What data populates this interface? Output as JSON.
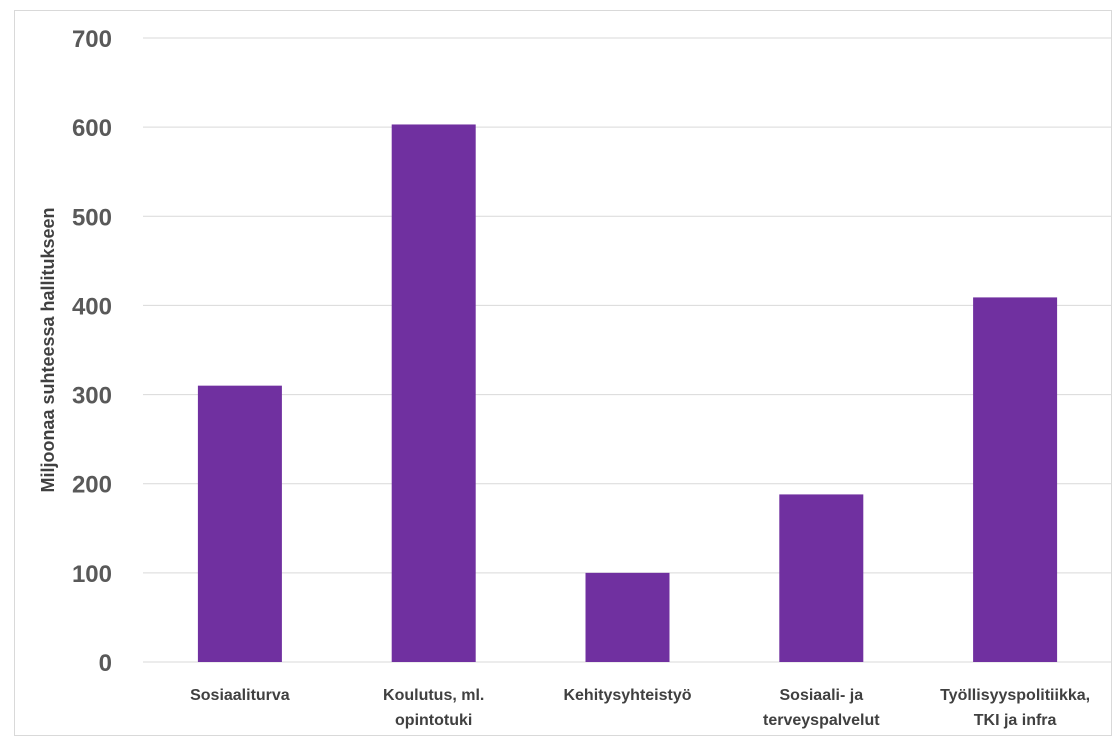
{
  "chart_data": {
    "type": "bar",
    "categories": [
      [
        "Sosiaaliturva"
      ],
      [
        "Koulutus, ml.",
        "opintotuki"
      ],
      [
        "Kehitysyhteistyö"
      ],
      [
        "Sosiaali- ja",
        "terveyspalvelut"
      ],
      [
        "Työllisyyspolitiikka,",
        "TKI ja infra"
      ]
    ],
    "values": [
      310,
      603,
      100,
      188,
      409
    ],
    "ylabel": "Miljoonaa suhteessa hallitukseen",
    "ylim": [
      0,
      700
    ],
    "yticks": [
      "0",
      "100",
      "200",
      "300",
      "400",
      "500",
      "600",
      "700"
    ],
    "grid": true,
    "bar_color": "#7030a0"
  }
}
